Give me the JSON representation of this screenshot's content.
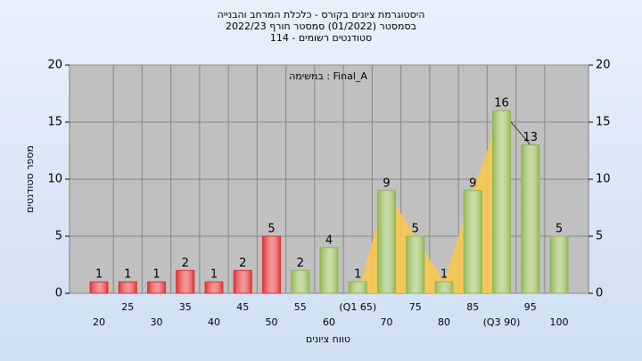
{
  "chart_data": {
    "type": "bar",
    "title": [
      "היסטוגרמת ציונים בקורס - כלכלת המרחב והבנייה",
      "בסמסטר  (01/2022)  סמסטר חורף  2022/23",
      "סטודנטים רשומים - 114"
    ],
    "annotation": "במשימה : Final_A",
    "x_label": "טווח ציונים",
    "y_label": "מספר סטודנטים",
    "categories": [
      "20",
      "25",
      "30",
      "35",
      "40",
      "45",
      "50",
      "55",
      "60",
      "(Q1 65)",
      "70",
      "75",
      "80",
      "85",
      "(Q3 90)",
      "95",
      "100"
    ],
    "values": [
      1,
      1,
      1,
      2,
      1,
      2,
      5,
      2,
      4,
      1,
      9,
      5,
      1,
      9,
      16,
      13,
      5
    ],
    "colors": [
      "#e03030",
      "#e03030",
      "#e03030",
      "#e03030",
      "#e03030",
      "#e03030",
      "#e03030",
      "#90b850",
      "#90b850",
      "#90b850",
      "#90b850",
      "#90b850",
      "#90b850",
      "#90b850",
      "#90b850",
      "#90b850",
      "#90b850"
    ],
    "ylim": [
      0,
      20
    ],
    "yticks": [
      0,
      5,
      10,
      15,
      20
    ],
    "y2lim": [
      0,
      20
    ],
    "y2ticks": [
      0,
      5,
      10,
      15,
      20
    ],
    "grid": true
  }
}
